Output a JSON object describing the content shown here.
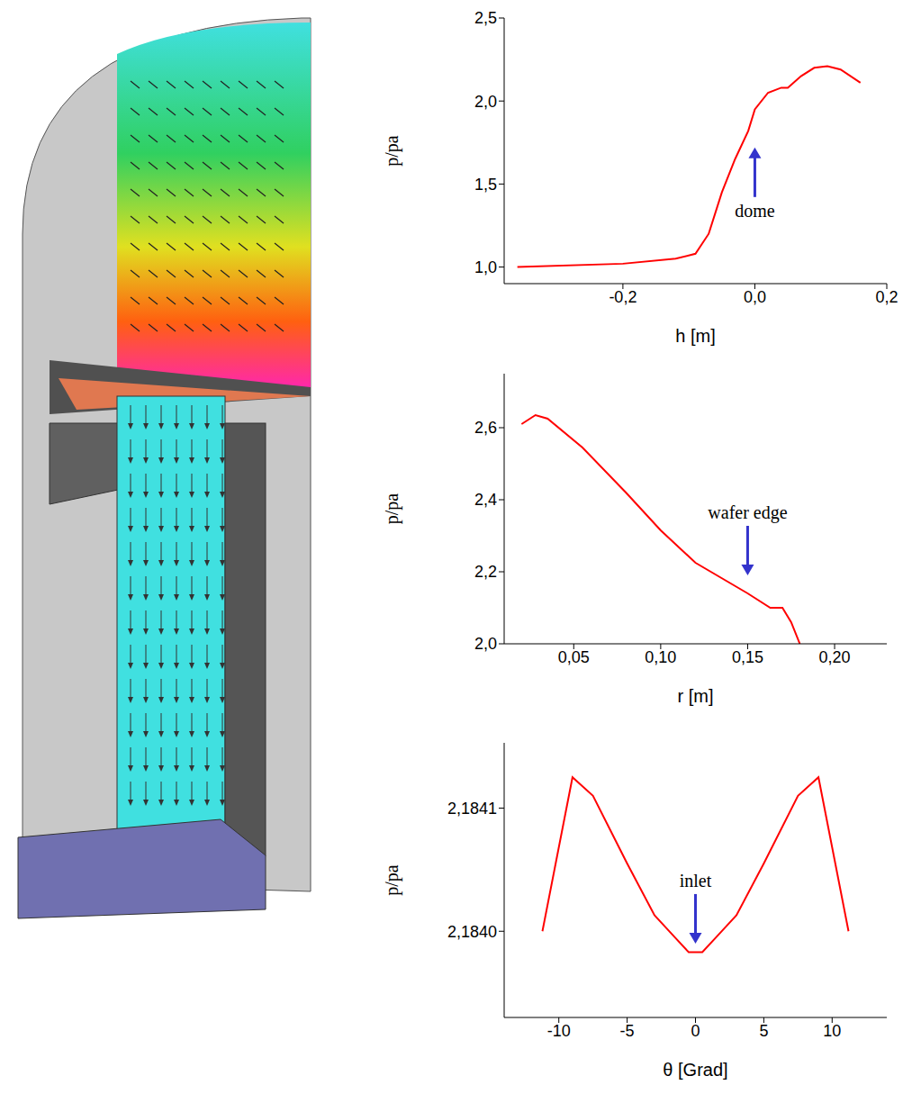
{
  "chart_data": [
    {
      "type": "line",
      "xlabel": "h [m]",
      "ylabel": "p/pa",
      "x": [
        -0.36,
        -0.2,
        -0.12,
        -0.09,
        -0.07,
        -0.05,
        -0.03,
        -0.01,
        0.0,
        0.02,
        0.04,
        0.05,
        0.07,
        0.09,
        0.11,
        0.13,
        0.16
      ],
      "values": [
        1.0,
        1.02,
        1.05,
        1.08,
        1.2,
        1.45,
        1.65,
        1.82,
        1.95,
        2.05,
        2.08,
        2.08,
        2.15,
        2.2,
        2.21,
        2.19,
        2.11
      ],
      "color": "#ff0000",
      "xlim": [
        -0.38,
        0.2
      ],
      "xticks": [
        {
          "value": -0.2,
          "label": "-0,2"
        },
        {
          "value": 0,
          "label": "0,0"
        },
        {
          "value": 0.2,
          "label": "0,2"
        }
      ],
      "ylim": [
        0.9,
        2.5
      ],
      "yticks": [
        {
          "value": 1,
          "label": "1,0"
        },
        {
          "value": 1.5,
          "label": "1,5"
        },
        {
          "value": 2,
          "label": "2,0"
        },
        {
          "value": 2.5,
          "label": "2,5"
        }
      ],
      "annotations": [
        {
          "text": "dome",
          "x": 0.0,
          "y": 1.72
        }
      ]
    },
    {
      "type": "line",
      "xlabel": "r [m]",
      "ylabel": "p/pa",
      "x": [
        0.02,
        0.028,
        0.035,
        0.055,
        0.08,
        0.1,
        0.12,
        0.15,
        0.163,
        0.17,
        0.175,
        0.18
      ],
      "values": [
        2.61,
        2.635,
        2.625,
        2.545,
        2.42,
        2.315,
        2.225,
        2.14,
        2.1,
        2.1,
        2.06,
        2.0
      ],
      "color": "#ff0000",
      "xlim": [
        0.01,
        0.23
      ],
      "xticks": [
        {
          "value": 0.05,
          "label": "0,05"
        },
        {
          "value": 0.1,
          "label": "0,10"
        },
        {
          "value": 0.15,
          "label": "0,15"
        },
        {
          "value": 0.2,
          "label": "0,20"
        }
      ],
      "ylim": [
        2.0,
        2.75
      ],
      "yticks": [
        {
          "value": 2,
          "label": "2,0"
        },
        {
          "value": 2.2,
          "label": "2,2"
        },
        {
          "value": 2.4,
          "label": "2,4"
        },
        {
          "value": 2.6,
          "label": "2,6"
        }
      ],
      "annotations": [
        {
          "text": "wafer edge",
          "x": 0.15,
          "y": 2.19
        }
      ]
    },
    {
      "type": "line",
      "xlabel": "θ [Grad]",
      "ylabel": "p/pa",
      "x": [
        -11.2,
        -9,
        -7.5,
        -5,
        -3,
        -1.5,
        -0.5,
        0.5,
        1.5,
        3,
        5,
        7.5,
        9,
        11.2
      ],
      "values": [
        2.184,
        2.184125,
        2.18411,
        2.184055,
        2.184013,
        2.183995,
        2.183983,
        2.183983,
        2.183995,
        2.184013,
        2.184055,
        2.18411,
        2.184125,
        2.184
      ],
      "color": "#ff0000",
      "xlim": [
        -14,
        14
      ],
      "xticks": [
        -10,
        -5,
        0,
        5,
        10
      ],
      "ylim": [
        2.18393,
        2.184153
      ],
      "yticks": [
        {
          "value": 2.184,
          "label": "2,1840"
        },
        {
          "value": 2.1841,
          "label": "2,1841"
        }
      ],
      "annotations": [
        {
          "text": "inlet",
          "x": 0,
          "y": 2.18399
        }
      ]
    }
  ]
}
